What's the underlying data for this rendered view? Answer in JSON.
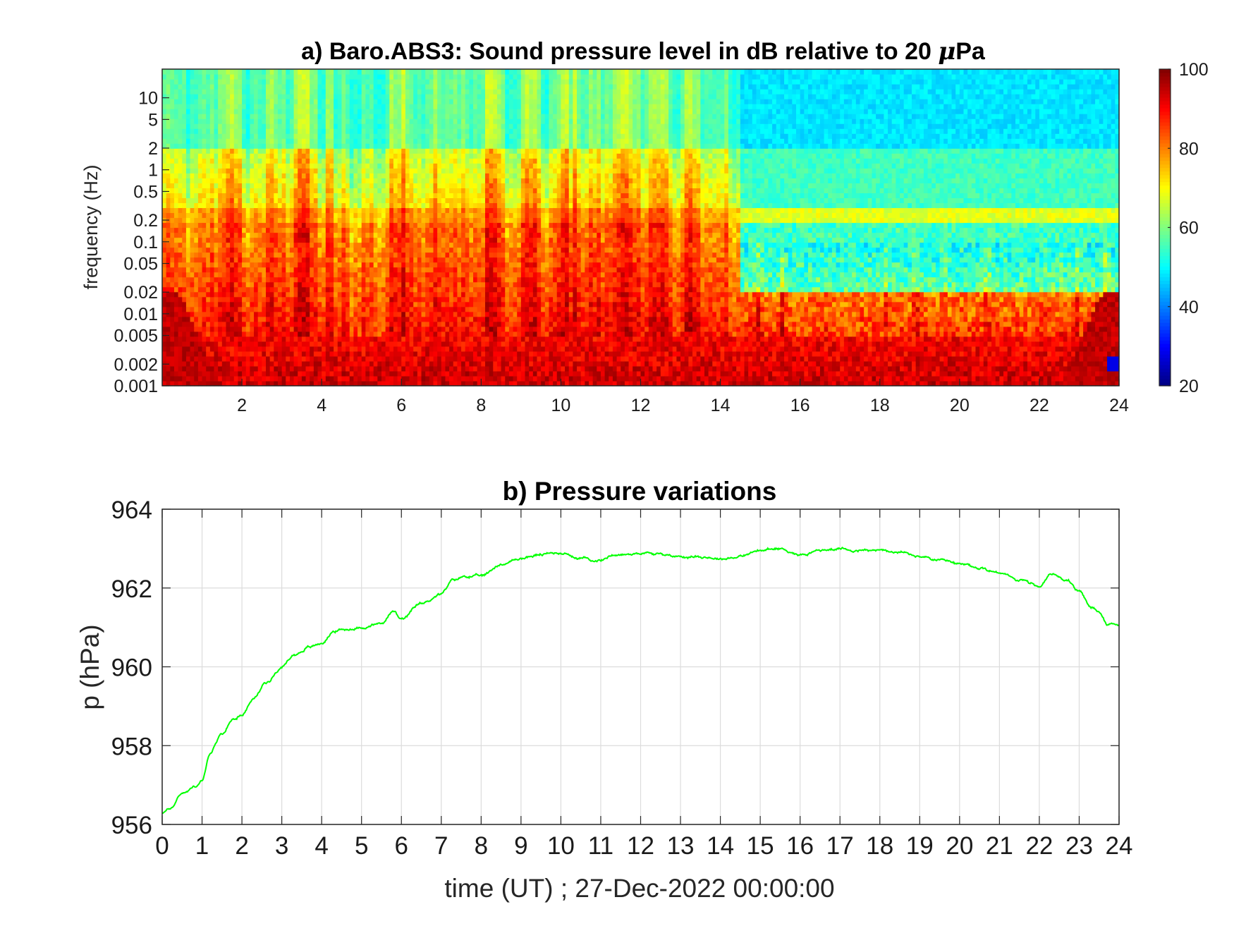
{
  "chart_data": [
    {
      "type": "heatmap",
      "title": "a) Baro.ABS3: Sound pressure level in dB relative to 20 μPa",
      "title_prefix": "a) Baro.ABS3: Sound pressure level in dB relative to 20 ",
      "title_mu": "μ",
      "title_suffix": "Pa",
      "ylabel": "frequency (Hz)",
      "xlabel": "",
      "x_unit": "hours (UT)",
      "xlim": [
        0,
        24
      ],
      "x_ticks": [
        2,
        4,
        6,
        8,
        10,
        12,
        14,
        16,
        18,
        20,
        22,
        24
      ],
      "y_scale": "log",
      "ylim": [
        0.001,
        25
      ],
      "y_ticks": [
        0.001,
        0.002,
        0.005,
        0.01,
        0.02,
        0.05,
        0.1,
        0.2,
        0.5,
        1,
        2,
        5,
        10
      ],
      "y_tick_labels": [
        "0.001",
        "0.002",
        "0.005",
        "0.01",
        "0.02",
        "0.05",
        "0.1",
        "0.2",
        "0.5",
        "1",
        "2",
        "5",
        "10"
      ],
      "colormap": "jet",
      "colorbar": {
        "range": [
          20,
          100
        ],
        "ticks": [
          20,
          40,
          60,
          80,
          100
        ],
        "placement": "right"
      },
      "levels_db": {
        "below_0_005_hz": "90-100",
        "0_01_to_0_1_hz_hours_0_to_14_5": "85-95",
        "0_05_to_0_2_hz_hours_14_5_to_24": "50-55",
        "0_2_hz_band": "65-70",
        "above_2_hz": "50-55"
      }
    },
    {
      "type": "line",
      "title": "b) Pressure variations",
      "xlabel": "time (UT) ; 27-Dec-2022 00:00:00",
      "ylabel": "p (hPa)",
      "xlim": [
        0,
        24
      ],
      "ylim": [
        956,
        964
      ],
      "x_ticks": [
        0,
        1,
        2,
        3,
        4,
        5,
        6,
        7,
        8,
        9,
        10,
        11,
        12,
        13,
        14,
        15,
        16,
        17,
        18,
        19,
        20,
        21,
        22,
        23,
        24
      ],
      "y_ticks": [
        956,
        958,
        960,
        962,
        964
      ],
      "grid": true,
      "line_color": "#00ff00",
      "series": [
        {
          "x": [
            0,
            0.2,
            0.5,
            0.8,
            1.0,
            1.2,
            1.5,
            1.8,
            2.0,
            2.3,
            2.6,
            3.0,
            3.3,
            3.7,
            4.0,
            4.3,
            4.6,
            5.0,
            5.5,
            5.8,
            6.0,
            6.5,
            7.0,
            7.3,
            7.6,
            8.0,
            8.5,
            9.0,
            9.5,
            10.0,
            10.5,
            11.0,
            11.3,
            11.7,
            12.0,
            12.5,
            13.0,
            13.5,
            14.0,
            14.5,
            15.0,
            15.5,
            16.0,
            16.5,
            17.0,
            17.5,
            18.0,
            18.5,
            19.0,
            19.5,
            20.0,
            20.5,
            21.0,
            21.5,
            22.0,
            22.3,
            22.7,
            23.0,
            23.3,
            23.5,
            23.7,
            24.0
          ],
          "y": [
            956.3,
            956.4,
            956.8,
            956.95,
            957.1,
            957.8,
            958.3,
            958.7,
            958.8,
            959.2,
            959.6,
            960.0,
            960.3,
            960.5,
            960.6,
            960.9,
            960.95,
            961.0,
            961.1,
            961.4,
            961.2,
            961.6,
            961.85,
            962.2,
            962.3,
            962.3,
            962.6,
            962.75,
            962.85,
            962.9,
            962.75,
            962.7,
            962.85,
            962.85,
            962.9,
            962.85,
            962.8,
            962.8,
            962.75,
            962.8,
            962.95,
            963.0,
            962.85,
            962.95,
            963.0,
            962.95,
            962.95,
            962.9,
            962.8,
            962.7,
            962.6,
            962.5,
            962.4,
            962.2,
            962.05,
            962.35,
            962.2,
            961.9,
            961.5,
            961.4,
            961.1,
            961.05
          ]
        }
      ]
    }
  ]
}
